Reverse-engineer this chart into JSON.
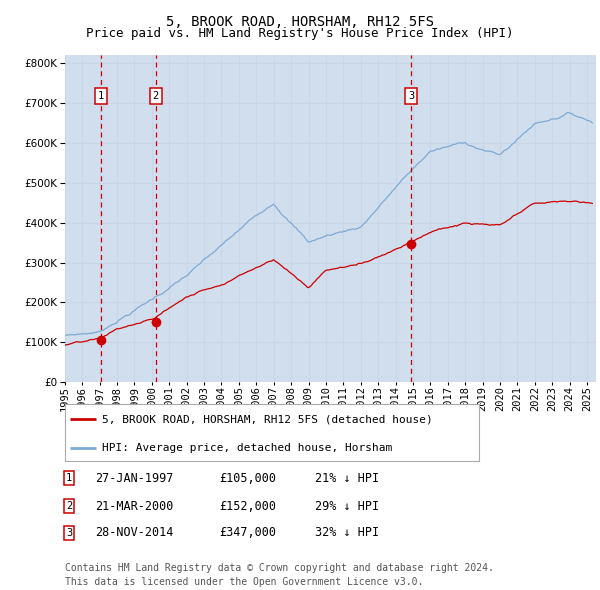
{
  "title": "5, BROOK ROAD, HORSHAM, RH12 5FS",
  "subtitle": "Price paid vs. HM Land Registry's House Price Index (HPI)",
  "ylim": [
    0,
    820000
  ],
  "yticks": [
    0,
    100000,
    200000,
    300000,
    400000,
    500000,
    600000,
    700000,
    800000
  ],
  "xlim_start": 1995.0,
  "xlim_end": 2025.5,
  "background_color": "#ffffff",
  "plot_bg_color": "#dce6f0",
  "grid_color": "#c8d4e4",
  "hpi_line_color": "#7eaad4",
  "price_line_color": "#cc0000",
  "vline_color": "#cc0000",
  "shade_color": "#c8d8ec",
  "transactions": [
    {
      "num": 1,
      "date_label": "27-JAN-1997",
      "price": 105000,
      "pct": "21%",
      "x_year": 1997.07
    },
    {
      "num": 2,
      "date_label": "21-MAR-2000",
      "price": 152000,
      "pct": "29%",
      "x_year": 2000.22
    },
    {
      "num": 3,
      "date_label": "28-NOV-2014",
      "price": 347000,
      "pct": "32%",
      "x_year": 2014.91
    }
  ],
  "legend_entry1": "5, BROOK ROAD, HORSHAM, RH12 5FS (detached house)",
  "legend_entry2": "HPI: Average price, detached house, Horsham",
  "footnote1": "Contains HM Land Registry data © Crown copyright and database right 2024.",
  "footnote2": "This data is licensed under the Open Government Licence v3.0.",
  "title_fontsize": 10,
  "subtitle_fontsize": 9,
  "tick_fontsize": 7.5,
  "legend_fontsize": 8,
  "table_fontsize": 8.5,
  "footnote_fontsize": 7
}
